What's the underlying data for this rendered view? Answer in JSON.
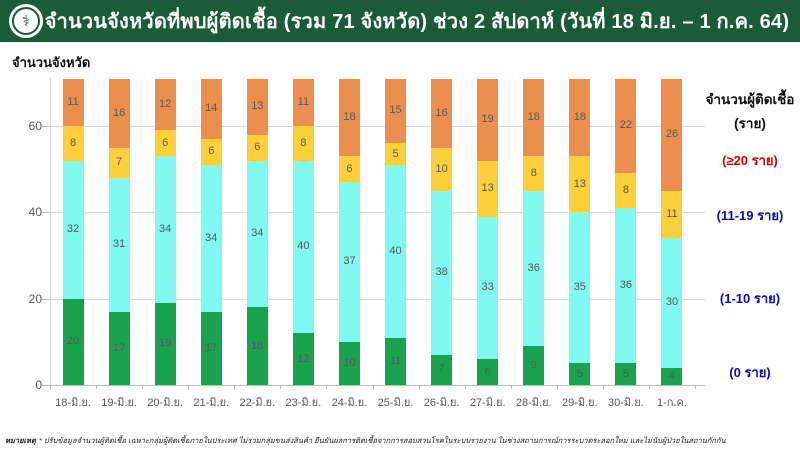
{
  "header": {
    "title": "จำนวนจังหวัดที่พบผู้ติดเชื้อ (รวม 71 จังหวัด) ช่วง 2 สัปดาห์ (วันที่ 18 มิ.ย. – 1 ก.ค. 64)",
    "logo_icon": "moph-caduceus-icon",
    "logo_glyph": "⚕"
  },
  "chart_data": {
    "type": "bar",
    "stacked": true,
    "title": "จำนวนจังหวัดที่พบผู้ติดเชื้อ (รวม 71 จังหวัด) ช่วง 2 สัปดาห์ (วันที่ 18 มิ.ย. – 1 ก.ค. 64)",
    "xlabel": "",
    "ylabel": "จำนวนจังหวัด",
    "ylim": [
      0,
      71
    ],
    "yticks": [
      0,
      20,
      40,
      60
    ],
    "grid": true,
    "legend_position": "right",
    "categories": [
      "18-มิ.ย.",
      "19-มิ.ย.",
      "20-มิ.ย.",
      "21-มิ.ย.",
      "22-มิ.ย.",
      "23-มิ.ย.",
      "24-มิ.ย.",
      "25-มิ.ย.",
      "26-มิ.ย.",
      "27-มิ.ย.",
      "28-มิ.ย.",
      "29-มิ.ย.",
      "30-มิ.ย.",
      "1-ก.ค."
    ],
    "series": [
      {
        "name": "(0 ราย)",
        "color": "#1aa34f",
        "values": [
          20,
          17,
          19,
          17,
          18,
          12,
          10,
          11,
          7,
          6,
          9,
          5,
          5,
          4
        ]
      },
      {
        "name": "(1-10 ราย)",
        "color": "#80f9f0",
        "values": [
          32,
          31,
          34,
          34,
          34,
          40,
          37,
          40,
          38,
          33,
          36,
          35,
          36,
          30
        ]
      },
      {
        "name": "(11-19 ราย)",
        "color": "#fdd03a",
        "values": [
          8,
          7,
          6,
          6,
          6,
          8,
          6,
          5,
          10,
          13,
          8,
          13,
          8,
          11
        ]
      },
      {
        "name": "(≥20 ราย)",
        "color": "#ea8f4d",
        "values": [
          11,
          16,
          12,
          14,
          13,
          11,
          18,
          15,
          16,
          19,
          18,
          18,
          22,
          26
        ]
      }
    ],
    "totals_per_category": 71
  },
  "legend": {
    "title_line1": "จำนวนผู้ติดเชื้อ",
    "title_line2": "(ราย)",
    "entries": [
      {
        "label": "(≥20 ราย)",
        "text_color": "#e00000"
      },
      {
        "label": "(11-19 ราย)",
        "text_color": "#0a0ac8"
      },
      {
        "label": "(1-10 ราย)",
        "text_color": "#0a0ac8"
      },
      {
        "label": "(0 ราย)",
        "text_color": "#0a0ac8"
      }
    ]
  },
  "footnote": {
    "label": "หมายเหตุ",
    "text": "* ปรับข้อมูลจำนวนผู้ติดเชื้อ เฉพาะกลุ่มผู้ติดเชื้อภายในประเทศ ไม่รวมกลุ่มขนส่งสินค้า ยืนยันผลการติดเชื้อจากการสอบสวนโรคในระบบรายงาน ในช่วงสถานการณ์การระบาดระลอกใหม่ และไม่นับผู้ป่วยในสถานกักกัน"
  },
  "colors": {
    "header_bg": "#1a5c38",
    "bar_0": "#1aa34f",
    "bar_1_10": "#80f9f0",
    "bar_11_19": "#fdd03a",
    "bar_20plus": "#ea8f4d",
    "gridline": "#d9d9d9",
    "value_label": "#595959",
    "legend_red": "#e00000",
    "legend_blue": "#0a0ac8"
  }
}
